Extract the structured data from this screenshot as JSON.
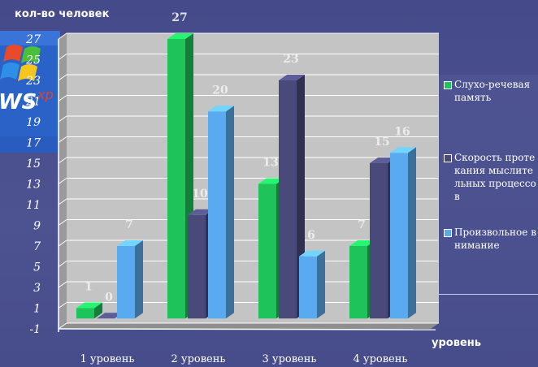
{
  "chart_data": {
    "type": "bar",
    "ylabel": "кол-во человек",
    "xlabel": "уровень",
    "ylim": [
      -1,
      27
    ],
    "yticks": [
      -1,
      1,
      3,
      5,
      7,
      9,
      11,
      13,
      15,
      17,
      19,
      21,
      23,
      25,
      27
    ],
    "categories": [
      "1 уровень",
      "2 уровень",
      "3 уровень",
      "4 уровень"
    ],
    "series": [
      {
        "name": "Слухо-речевая память",
        "values": [
          1,
          27,
          13,
          7
        ],
        "color": "#1ec45a"
      },
      {
        "name": "Скорость протекания мыслительных процессов",
        "values": [
          0,
          10,
          23,
          15
        ],
        "color": "#4a4a7a"
      },
      {
        "name": "Произвольное внимание",
        "values": [
          7,
          20,
          6,
          16
        ],
        "color": "#5aaaf0"
      }
    ],
    "legend": "right",
    "grid": true
  },
  "legend": {
    "items": [
      {
        "text": "Слухо-речевая память"
      },
      {
        "text": "Скорость протекания мыслительных процессов"
      },
      {
        "text": "Произвольное внимание"
      }
    ]
  },
  "background_logo_text": "WS xp"
}
